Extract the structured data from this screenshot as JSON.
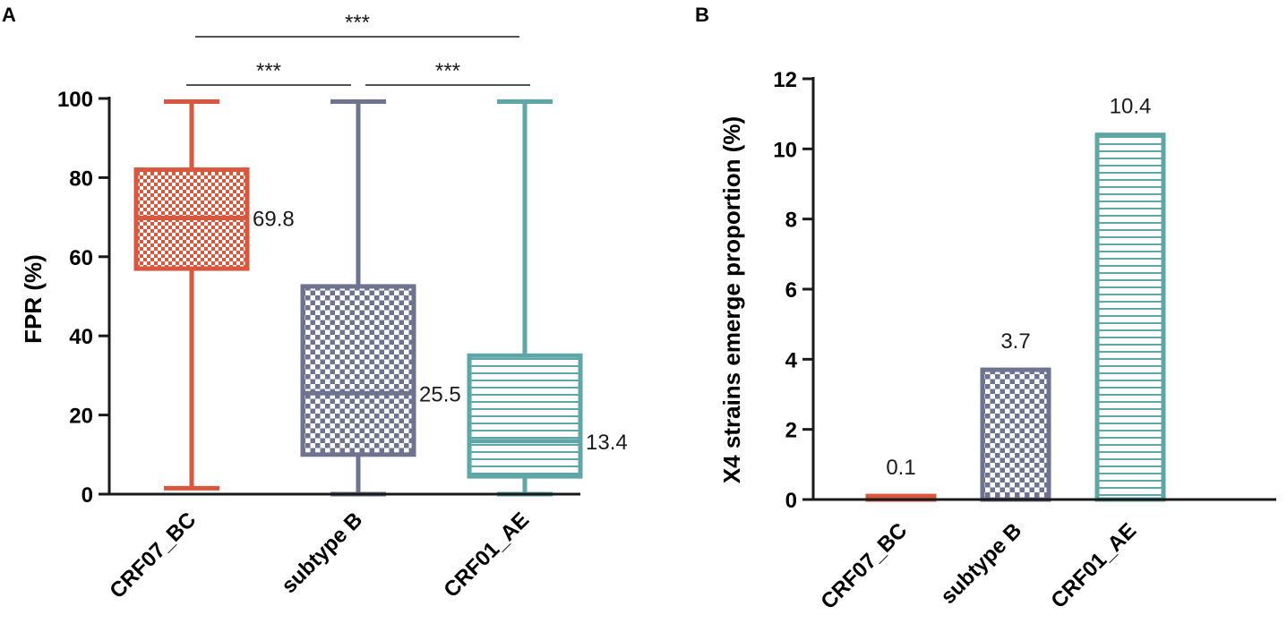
{
  "chart_data": [
    {
      "panel": "A",
      "type": "box",
      "ylabel": "FPR (%)",
      "ylim": [
        0,
        100
      ],
      "yticks": [
        0,
        20,
        40,
        60,
        80,
        100
      ],
      "categories": [
        "CRF07_BC",
        "subtype B",
        "CRF01_AE"
      ],
      "boxes": [
        {
          "name": "CRF07_BC",
          "min": 1.5,
          "q1": 57,
          "median": 69.8,
          "q3": 82,
          "max": 99.2,
          "median_label": "69.8",
          "color": "#d9573f",
          "pattern": "checker"
        },
        {
          "name": "subtype B",
          "min": 0,
          "q1": 10,
          "median": 25.5,
          "q3": 52.5,
          "max": 99.2,
          "median_label": "25.5",
          "color": "#6e7390",
          "pattern": "checker"
        },
        {
          "name": "CRF01_AE",
          "min": 0,
          "q1": 4.5,
          "median": 13.4,
          "q3": 35,
          "max": 99.2,
          "median_label": "13.4",
          "color": "#5fa7a6",
          "pattern": "hstripes"
        }
      ],
      "significance": [
        {
          "from": 0,
          "to": 1,
          "label": "***"
        },
        {
          "from": 1,
          "to": 2,
          "label": "***"
        },
        {
          "from": 0,
          "to": 2,
          "label": "***"
        }
      ]
    },
    {
      "panel": "B",
      "type": "bar",
      "ylabel": "X4 strains emerge proportion (%)",
      "ylim": [
        0,
        12
      ],
      "yticks": [
        0,
        2,
        4,
        6,
        8,
        10,
        12
      ],
      "categories": [
        "CRF07_BC",
        "subtype B",
        "CRF01_AE"
      ],
      "values": [
        0.1,
        3.7,
        10.4
      ],
      "value_labels": [
        "0.1",
        "3.7",
        "10.4"
      ],
      "colors": [
        "#d9573f",
        "#6e7390",
        "#5fa7a6"
      ],
      "patterns": [
        "solid",
        "checker",
        "hstripes"
      ]
    }
  ]
}
